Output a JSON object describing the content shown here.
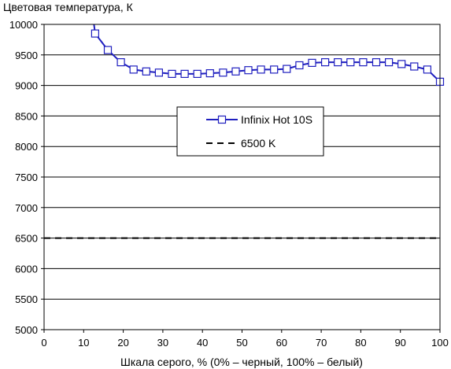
{
  "chart_data": {
    "type": "line",
    "title": "",
    "ylabel": "Цветовая температура, К",
    "xlabel": "Шкала серого, % (0% – черный, 100% – белый)",
    "xlim": [
      0,
      100
    ],
    "ylim": [
      5000,
      10000
    ],
    "xticks": [
      0,
      10,
      20,
      30,
      40,
      50,
      60,
      70,
      80,
      90,
      100
    ],
    "yticks": [
      5000,
      5500,
      6000,
      6500,
      7000,
      7500,
      8000,
      8500,
      9000,
      9500,
      10000
    ],
    "grid": "horizontal",
    "legend_position": "center",
    "series": [
      {
        "name": "Infinix Hot 10S",
        "color": "#1f1fbf",
        "marker": "square",
        "x": [
          12.9,
          16.1,
          19.4,
          22.6,
          25.8,
          29.0,
          32.3,
          35.5,
          38.7,
          41.9,
          45.2,
          48.4,
          51.6,
          54.8,
          58.1,
          61.3,
          64.5,
          67.7,
          71.0,
          74.2,
          77.4,
          80.6,
          83.9,
          87.1,
          90.3,
          93.5,
          96.8,
          100
        ],
        "y": [
          9850,
          9580,
          9380,
          9260,
          9230,
          9210,
          9190,
          9190,
          9190,
          9200,
          9210,
          9230,
          9250,
          9260,
          9260,
          9270,
          9330,
          9370,
          9380,
          9380,
          9380,
          9380,
          9380,
          9380,
          9350,
          9310,
          9260,
          9060
        ]
      },
      {
        "name": "6500 K",
        "color": "#000000",
        "style": "dashed",
        "x": [
          0,
          100
        ],
        "y": [
          6500,
          6500
        ]
      }
    ]
  }
}
